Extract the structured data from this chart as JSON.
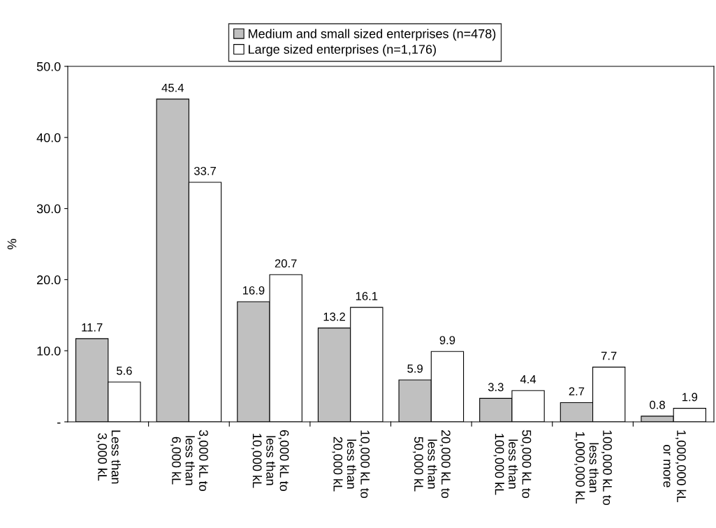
{
  "chart_data": {
    "type": "bar",
    "ylabel": "%",
    "categories": [
      "Less than\n3,000 kL",
      "3,000 kL to\nless than\n6,000 kL",
      "6,000 kL to\nless than\n10,000 kL",
      "10,000 kL to\nless than\n20,000 kL",
      "20,000 kL to\nless than\n50,000 kL",
      "50,000 kL to\nless than\n100,000 kL",
      "100,000 kL to\nless than\n1,000,000 kL",
      "1,000,000 kL\nor more"
    ],
    "series": [
      {
        "name": "Medium and small sized enterprises (n=478)",
        "color": "#c0c0c0",
        "values": [
          11.7,
          45.4,
          16.9,
          13.2,
          5.9,
          3.3,
          2.7,
          0.8
        ]
      },
      {
        "name": "Large sized enterprises (n=1,176)",
        "color": "#ffffff",
        "values": [
          5.6,
          33.7,
          20.7,
          16.1,
          9.9,
          4.4,
          7.7,
          1.9
        ]
      }
    ],
    "ylim": [
      0,
      50
    ],
    "yticks": [
      {
        "value": 0,
        "label": "-"
      },
      {
        "value": 10,
        "label": "10.0"
      },
      {
        "value": 20,
        "label": "20.0"
      },
      {
        "value": 30,
        "label": "30.0"
      },
      {
        "value": 40,
        "label": "40.0"
      },
      {
        "value": 50,
        "label": "50.0"
      }
    ],
    "data_labels": true,
    "legend": "top",
    "grid": false
  }
}
